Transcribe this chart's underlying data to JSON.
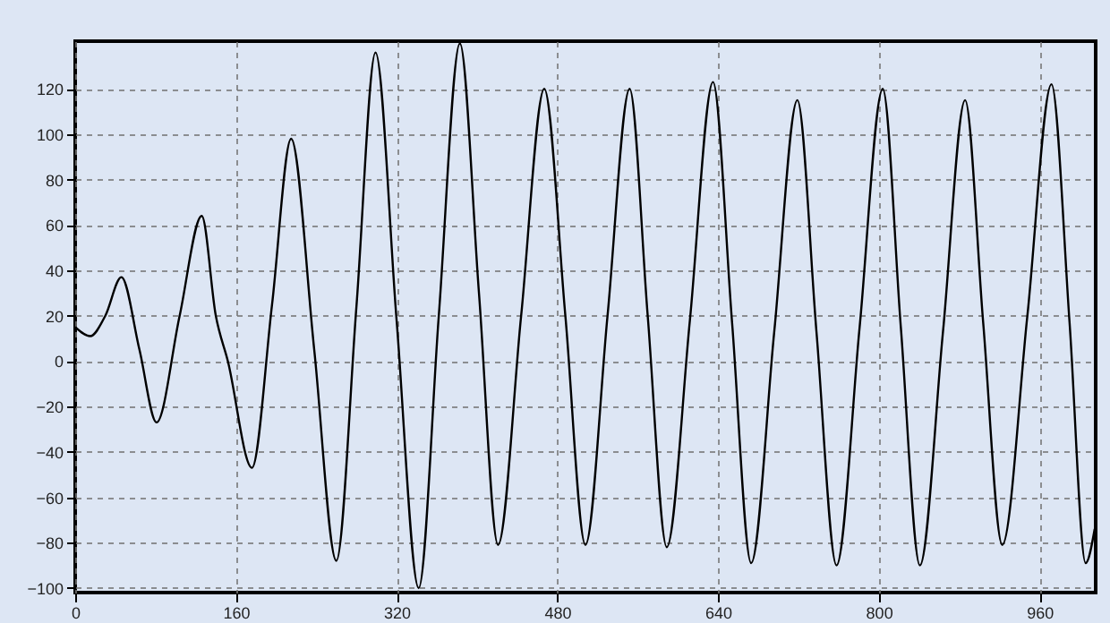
{
  "chart_data": {
    "type": "line",
    "x": [
      0,
      15,
      30,
      46,
      64,
      81,
      104,
      126,
      140,
      152,
      176,
      196,
      215,
      238,
      260,
      280,
      299,
      320,
      342,
      362,
      383,
      402,
      421,
      444,
      467,
      488,
      508,
      530,
      552,
      570,
      589,
      612,
      635,
      654,
      673,
      696,
      719,
      738,
      758,
      781,
      804,
      822,
      841,
      864,
      886,
      904,
      923,
      948,
      972,
      990,
      1006,
      1015
    ],
    "series": [
      {
        "color": "#000000",
        "values": [
          15,
          11,
          20,
          37,
          5,
          -27,
          20,
          64,
          20,
          0,
          -47,
          25,
          98,
          5,
          -88,
          24,
          136,
          18,
          -100,
          20,
          140,
          30,
          -81,
          20,
          120,
          20,
          -81,
          20,
          120,
          20,
          -82,
          18,
          123,
          17,
          -89,
          13,
          115,
          13,
          -90,
          15,
          120,
          15,
          -90,
          13,
          115,
          17,
          -81,
          20,
          122,
          17,
          -89,
          -74
        ]
      }
    ],
    "xlim": [
      0,
      1016
    ],
    "ylim": [
      -102,
      141
    ],
    "xticks": [
      0,
      160,
      320,
      480,
      640,
      800,
      960
    ],
    "yticks": [
      -100,
      -80,
      -60,
      -40,
      -20,
      0,
      20,
      40,
      60,
      80,
      100,
      120
    ],
    "grid": true,
    "line_style": "solid"
  }
}
